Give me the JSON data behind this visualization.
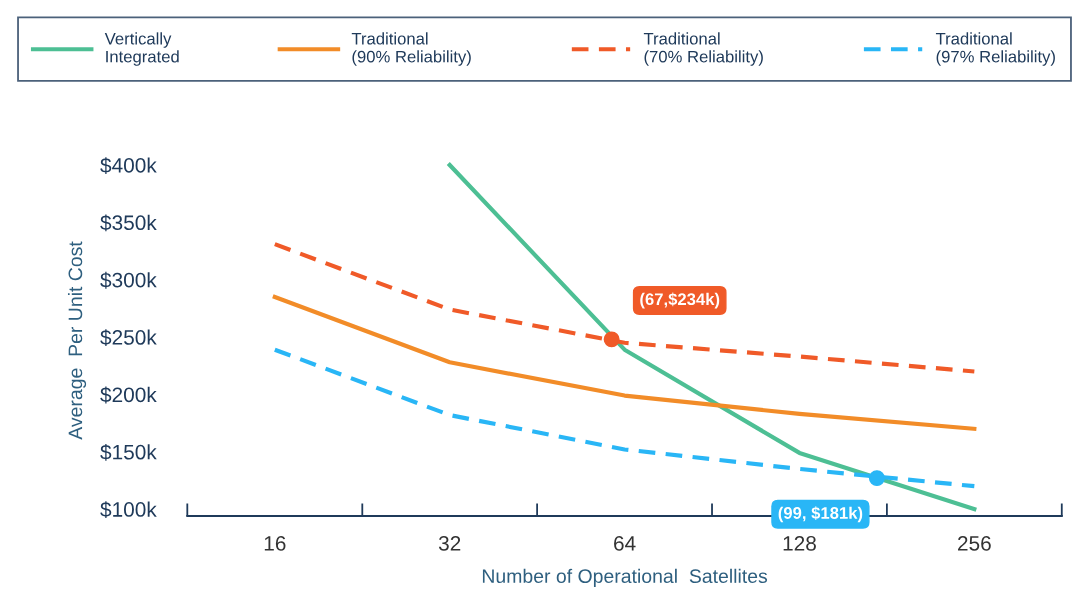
{
  "chart_data": {
    "type": "line",
    "xlabel": "Number of Operational  Satellites",
    "ylabel": "Average  Per Unit Cost",
    "log": "x",
    "x": [
      16,
      32,
      64,
      128,
      256
    ],
    "series": [
      {
        "name": "Vertically\nIntegrated",
        "color": "#4dbf94",
        "x": [
          32,
          64,
          128,
          256
        ],
        "values": [
          400,
          239,
          149,
          100
        ],
        "line_style": "solid"
      },
      {
        "name": "Traditional\n(90% Reliability)",
        "color": "#f28c28",
        "values": [
          285,
          228,
          199,
          183,
          170
        ],
        "line_style": "solid"
      },
      {
        "name": "Traditional\n(70% Reliability)",
        "color": "#f05a28",
        "values": [
          331,
          274,
          245,
          233,
          220
        ],
        "line_style": "dashed"
      },
      {
        "name": "Traditional\n(97% Reliability)",
        "color": "#29b6f6",
        "values": [
          239,
          182,
          152,
          135,
          120
        ],
        "line_style": "dashed"
      },
      {
        "type": "scatter",
        "color": "#f05a28",
        "x": [
          60.8
        ],
        "values": [
          248
        ],
        "marker": "circle"
      },
      {
        "type": "scatter",
        "color": "#29b6f6",
        "x": [
          174
        ],
        "values": [
          127
        ],
        "marker": "circle"
      }
    ],
    "annotations": [
      {
        "text": "(67,$234k)",
        "x": 60.8,
        "y": 248
      },
      {
        "text": "(99, $181k)",
        "x": 174,
        "y": 127
      }
    ],
    "xlim": [
      11.31,
      362.04
    ],
    "ylim": [
      94,
      400
    ],
    "xticks": [
      {
        "value": 11.31,
        "label": null
      },
      16,
      {
        "value": 22.63,
        "label": null
      },
      32,
      {
        "value": 45.25,
        "label": null
      },
      64,
      {
        "value": 90.51,
        "label": null
      },
      128,
      {
        "value": 181.02,
        "label": null
      },
      256,
      {
        "value": 362.04,
        "label": null
      }
    ],
    "yticks": [
      {
        "value": 100,
        "label": "$100k"
      },
      {
        "value": 150,
        "label": "$150k"
      },
      {
        "value": 200,
        "label": "$200k"
      },
      {
        "value": 250,
        "label": "$250k"
      },
      {
        "value": 300,
        "label": "$300k"
      },
      {
        "value": 350,
        "label": "$350k"
      },
      {
        "value": 400,
        "label": "$400k"
      }
    ],
    "grid": false,
    "legend": "top",
    "marker": "none"
  }
}
